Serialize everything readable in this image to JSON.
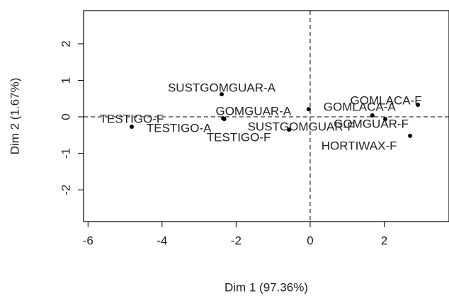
{
  "chart_data": {
    "type": "scatter",
    "xlabel": "Dim 1 (97.36%)",
    "ylabel": "Dim 2 (1.67%)",
    "labels": [
      "TESTIGO-F",
      "TESTIGO-A",
      "TESTIGO-F",
      "SUSTGOMGUAR-A",
      "GOMGUAR-A",
      "SUSTGOMGUAR-F",
      "GOMLACA-A",
      "GOMGUAR-F",
      "GOMLACA-F",
      "HORTIWAX-F"
    ],
    "x": [
      -4.82,
      -2.32,
      -2.35,
      -2.39,
      -0.04,
      -0.57,
      1.68,
      2.03,
      2.91,
      2.7
    ],
    "y": [
      -0.27,
      -0.06,
      -0.04,
      0.62,
      0.21,
      -0.35,
      0.04,
      -0.06,
      0.33,
      -0.52
    ],
    "color": "#000000",
    "xlim": [
      -6.12,
      3.75
    ],
    "ylim": [
      -2.87,
      2.91
    ],
    "xticks": [
      -6,
      -4,
      -2,
      0,
      2
    ],
    "yticks": [
      -2,
      -1,
      0,
      1,
      2
    ]
  }
}
